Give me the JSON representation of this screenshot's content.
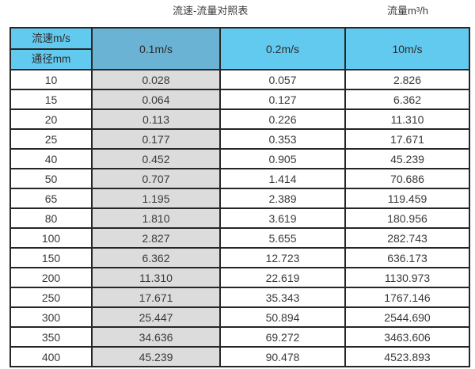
{
  "page": {
    "title": "流速-流量对照表",
    "unit_label": "流量m³/h"
  },
  "colors": {
    "header_blue": "#63CAEF",
    "highlight_blue": "#6BB3D4",
    "col_gray": "#DCDCDC",
    "border": "#262626"
  },
  "table": {
    "header": {
      "velocity_label": "流速m/s",
      "diameter_label": "通径mm",
      "columns": [
        "0.1m/s",
        "0.2m/s",
        "10m/s"
      ]
    },
    "chart_data": {
      "type": "table",
      "title": "流速-流量对照表",
      "columns": [
        "通径mm",
        "0.1m/s",
        "0.2m/s",
        "10m/s"
      ],
      "unit": "流量m³/h"
    },
    "rows": [
      [
        "10",
        "0.028",
        "0.057",
        "2.826"
      ],
      [
        "15",
        "0.064",
        "0.127",
        "6.362"
      ],
      [
        "20",
        "0.113",
        "0.226",
        "11.310"
      ],
      [
        "25",
        "0.177",
        "0.353",
        "17.671"
      ],
      [
        "40",
        "0.452",
        "0.905",
        "45.239"
      ],
      [
        "50",
        "0.707",
        "1.414",
        "70.686"
      ],
      [
        "65",
        "1.195",
        "2.389",
        "119.459"
      ],
      [
        "80",
        "1.810",
        "3.619",
        "180.956"
      ],
      [
        "100",
        "2.827",
        "5.655",
        "282.743"
      ],
      [
        "150",
        "6.362",
        "12.723",
        "636.173"
      ],
      [
        "200",
        "11.310",
        "22.619",
        "1130.973"
      ],
      [
        "250",
        "17.671",
        "35.343",
        "1767.146"
      ],
      [
        "300",
        "25.447",
        "50.894",
        "2544.690"
      ],
      [
        "350",
        "34.636",
        "69.272",
        "3463.606"
      ],
      [
        "400",
        "45.239",
        "90.478",
        "4523.893"
      ]
    ]
  }
}
